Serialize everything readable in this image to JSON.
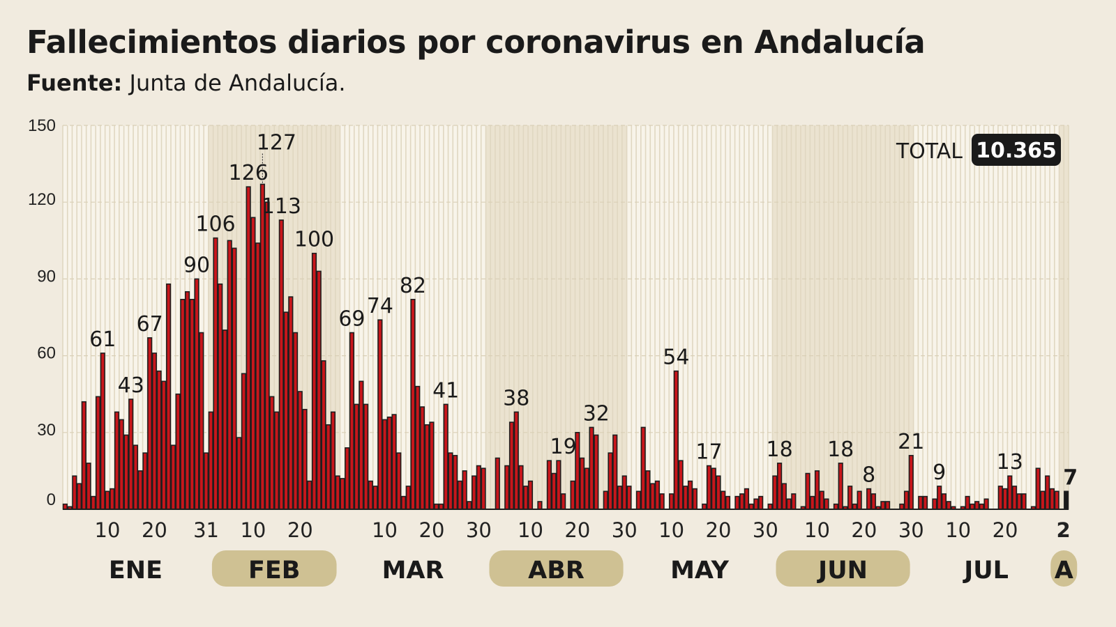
{
  "title": "Fallecimientos diarios por coronavirus en Andalucía",
  "source_label": "Fuente:",
  "source": "Junta de Andalucía.",
  "total": {
    "label": "TOTAL",
    "value": "10.365"
  },
  "colors": {
    "background": "#f1ebdf",
    "bar": "#c8161b",
    "bar_last_month": "#1a1a1a",
    "band_highlight": "#ebe3d0",
    "band_plain": "#f8f4ea",
    "pill": "#cfc193",
    "total_box": "#1a1a1a"
  },
  "chart_data": {
    "type": "bar",
    "title": "Fallecimientos diarios por coronavirus en Andalucía",
    "xlabel": "",
    "ylabel": "",
    "ylim": [
      0,
      150
    ],
    "yticks": [
      "0",
      "30",
      "60",
      "90",
      "120",
      "150"
    ],
    "grid": true,
    "months": [
      {
        "label": "ENE",
        "days": 31,
        "highlight": false,
        "ticks": [
          {
            "day": 10,
            "label": "10"
          },
          {
            "day": 20,
            "label": "20"
          },
          {
            "day": 31,
            "label": "31"
          }
        ]
      },
      {
        "label": "FEB",
        "days": 28,
        "highlight": true,
        "ticks": [
          {
            "day": 10,
            "label": "10"
          },
          {
            "day": 20,
            "label": "20"
          }
        ]
      },
      {
        "label": "MAR",
        "days": 31,
        "highlight": false,
        "ticks": [
          {
            "day": 10,
            "label": "10"
          },
          {
            "day": 20,
            "label": "20"
          },
          {
            "day": 30,
            "label": "30"
          }
        ]
      },
      {
        "label": "ABR",
        "days": 30,
        "highlight": true,
        "ticks": [
          {
            "day": 10,
            "label": "10"
          },
          {
            "day": 20,
            "label": "20"
          },
          {
            "day": 30,
            "label": "30"
          }
        ]
      },
      {
        "label": "MAY",
        "days": 31,
        "highlight": false,
        "ticks": [
          {
            "day": 10,
            "label": "10"
          },
          {
            "day": 20,
            "label": "20"
          },
          {
            "day": 30,
            "label": "30"
          }
        ]
      },
      {
        "label": "JUN",
        "days": 30,
        "highlight": true,
        "ticks": [
          {
            "day": 10,
            "label": "10"
          },
          {
            "day": 20,
            "label": "20"
          },
          {
            "day": 30,
            "label": "30"
          }
        ]
      },
      {
        "label": "JUL",
        "days": 31,
        "highlight": false,
        "ticks": [
          {
            "day": 10,
            "label": "10"
          },
          {
            "day": 20,
            "label": "20"
          }
        ]
      },
      {
        "label": "A",
        "days": 2,
        "highlight": true,
        "ticks": [
          {
            "day": 2,
            "label": "2"
          }
        ]
      }
    ],
    "values": [
      2,
      1,
      13,
      10,
      42,
      18,
      5,
      44,
      61,
      7,
      8,
      38,
      35,
      29,
      43,
      25,
      15,
      22,
      67,
      61,
      54,
      50,
      88,
      25,
      45,
      82,
      85,
      82,
      90,
      69,
      22,
      38,
      106,
      88,
      70,
      105,
      102,
      28,
      53,
      126,
      114,
      104,
      127,
      120,
      44,
      38,
      113,
      77,
      83,
      69,
      46,
      39,
      11,
      100,
      93,
      58,
      33,
      38,
      13,
      12,
      24,
      69,
      41,
      50,
      41,
      11,
      9,
      74,
      35,
      36,
      37,
      22,
      5,
      9,
      82,
      48,
      40,
      33,
      34,
      2,
      2,
      41,
      22,
      21,
      11,
      15,
      3,
      13,
      17,
      16,
      0,
      0,
      20,
      0,
      17,
      34,
      38,
      17,
      9,
      11,
      0,
      3,
      0,
      19,
      14,
      19,
      6,
      0,
      11,
      30,
      20,
      16,
      32,
      29,
      0,
      7,
      22,
      29,
      9,
      13,
      9,
      0,
      7,
      32,
      15,
      10,
      11,
      6,
      0,
      6,
      54,
      19,
      9,
      11,
      8,
      0,
      2,
      17,
      16,
      13,
      7,
      5,
      0,
      5,
      6,
      8,
      2,
      4,
      5,
      0,
      2,
      13,
      18,
      10,
      4,
      6,
      0,
      1,
      14,
      5,
      15,
      7,
      4,
      0,
      2,
      18,
      1,
      9,
      2,
      7,
      0,
      8,
      6,
      1,
      3,
      3,
      0,
      0,
      2,
      7,
      21,
      0,
      5,
      5,
      0,
      4,
      9,
      6,
      3,
      1,
      0,
      1,
      5,
      2,
      3,
      2,
      4,
      0,
      0,
      9,
      8,
      13,
      9,
      6,
      6,
      0,
      1,
      16,
      7,
      13,
      8,
      7,
      0,
      7
    ],
    "annotations": [
      {
        "month": "ENE",
        "day": 9,
        "value": 61,
        "label": "61"
      },
      {
        "month": "ENE",
        "day": 15,
        "value": 43,
        "label": "43"
      },
      {
        "month": "ENE",
        "day": 19,
        "value": 67,
        "label": "67"
      },
      {
        "month": "ENE",
        "day": 29,
        "value": 90,
        "label": "90"
      },
      {
        "month": "FEB",
        "day": 2,
        "value": 106,
        "label": "106"
      },
      {
        "month": "FEB",
        "day": 9,
        "value": 126,
        "label": "126"
      },
      {
        "month": "FEB",
        "day": 12,
        "value": 127,
        "label": "127",
        "leader": true
      },
      {
        "month": "FEB",
        "day": 16,
        "value": 113,
        "label": "113"
      },
      {
        "month": "FEB",
        "day": 23,
        "value": 100,
        "label": "100"
      },
      {
        "month": "MAR",
        "day": 3,
        "value": 69,
        "label": "69"
      },
      {
        "month": "MAR",
        "day": 9,
        "value": 74,
        "label": "74"
      },
      {
        "month": "MAR",
        "day": 16,
        "value": 82,
        "label": "82"
      },
      {
        "month": "MAR",
        "day": 23,
        "value": 41,
        "label": "41"
      },
      {
        "month": "ABR",
        "day": 7,
        "value": 38,
        "label": "38"
      },
      {
        "month": "ABR",
        "day": 17,
        "value": 19,
        "label": "19"
      },
      {
        "month": "ABR",
        "day": 24,
        "value": 32,
        "label": "32"
      },
      {
        "month": "MAY",
        "day": 11,
        "value": 54,
        "label": "54"
      },
      {
        "month": "MAY",
        "day": 18,
        "value": 17,
        "label": "17"
      },
      {
        "month": "JUN",
        "day": 2,
        "value": 18,
        "label": "18"
      },
      {
        "month": "JUN",
        "day": 15,
        "value": 18,
        "label": "18"
      },
      {
        "month": "JUN",
        "day": 21,
        "value": 8,
        "label": "8"
      },
      {
        "month": "JUN",
        "day": 30,
        "value": 21,
        "label": "21"
      },
      {
        "month": "JUL",
        "day": 6,
        "value": 9,
        "label": "9"
      },
      {
        "month": "JUL",
        "day": 21,
        "value": 13,
        "label": "13"
      },
      {
        "month": "A",
        "day": 2,
        "value": 7,
        "label": "7",
        "bold": true
      }
    ]
  }
}
